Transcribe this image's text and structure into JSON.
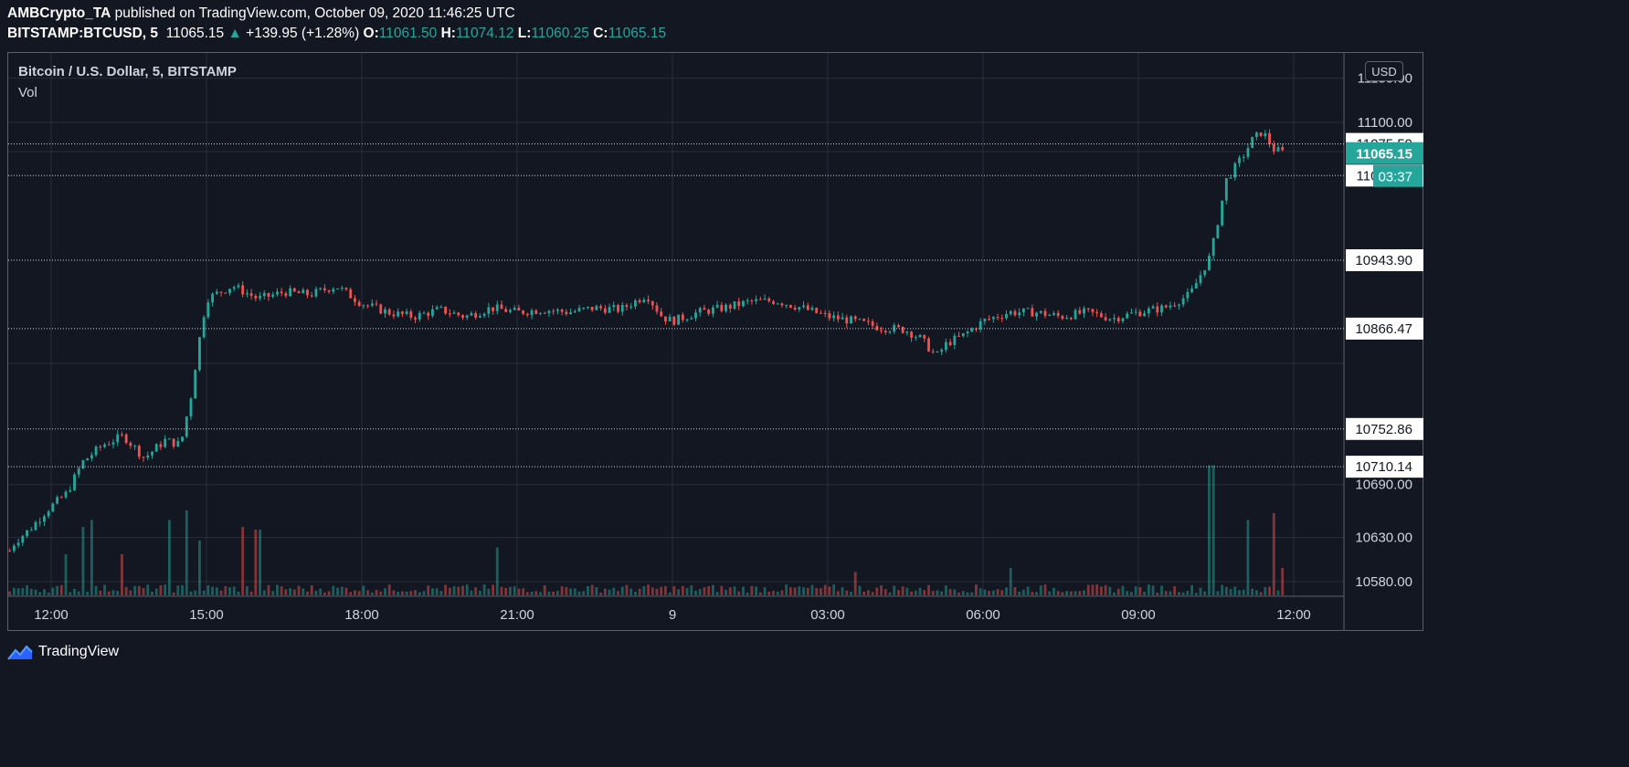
{
  "header": {
    "author": "AMBCrypto_TA",
    "published_text": " published on TradingView.com, October 09, 2020 11:46:25 UTC",
    "symbol": "BITSTAMP:BTCUSD, 5",
    "last": "11065.15",
    "arrow": "▲",
    "change": "+139.95 (+1.28%)",
    "o_label": "O:",
    "o_value": "11061.50",
    "h_label": "H:",
    "h_value": "11074.12",
    "l_label": "L:",
    "l_value": "11060.25",
    "c_label": "C:",
    "c_value": "11065.15"
  },
  "legend": {
    "title": "Bitcoin / U.S. Dollar, 5, BITSTAMP",
    "vol": "Vol"
  },
  "currency_button": "USD",
  "footer": {
    "brand": "TradingView"
  },
  "colors": {
    "background": "#131722",
    "up": "#26a69a",
    "down": "#ef5350",
    "grid": "#2a2e39",
    "text": "#d1d4dc"
  },
  "chart_data": {
    "type": "candlestick",
    "title": "Bitcoin / U.S. Dollar, 5, BITSTAMP",
    "ylim": [
      10555,
      11160
    ],
    "y_ticks": [
      11150.0,
      11100.0,
      10690.0,
      10630.0,
      10580.0
    ],
    "y_tick_labels": [
      "11150.00",
      "11100.00",
      "10690.00",
      "10630.00",
      "10580.00"
    ],
    "price_lines": [
      {
        "value": 11075.59,
        "label": "11075.59"
      },
      {
        "value": 11039.73,
        "label": "11039.73"
      },
      {
        "value": 10943.9,
        "label": "10943.90"
      },
      {
        "value": 10866.47,
        "label": "10866.47"
      },
      {
        "value": 10752.86,
        "label": "10752.86"
      },
      {
        "value": 10710.14,
        "label": "10710.14"
      }
    ],
    "last_price": {
      "value": 11065.15,
      "label": "11065.15",
      "countdown": "03:37"
    },
    "x_ticks": [
      "12:00",
      "15:00",
      "18:00",
      "21:00",
      "9",
      "03:00",
      "06:00",
      "09:00",
      "12:00"
    ],
    "grid": true,
    "price_path": [
      [
        11.2,
        10615
      ],
      [
        11.3,
        10625
      ],
      [
        11.6,
        10640
      ],
      [
        11.9,
        10660
      ],
      [
        12.3,
        10680
      ],
      [
        12.6,
        10715
      ],
      [
        13.0,
        10735
      ],
      [
        13.4,
        10745
      ],
      [
        13.8,
        10720
      ],
      [
        14.2,
        10740
      ],
      [
        14.5,
        10735
      ],
      [
        14.7,
        10790
      ],
      [
        14.85,
        10850
      ],
      [
        15.0,
        10900
      ],
      [
        15.5,
        10915
      ],
      [
        16.0,
        10900
      ],
      [
        16.5,
        10908
      ],
      [
        17.0,
        10905
      ],
      [
        17.5,
        10915
      ],
      [
        18.0,
        10895
      ],
      [
        18.5,
        10885
      ],
      [
        19.0,
        10880
      ],
      [
        19.5,
        10888
      ],
      [
        20.0,
        10880
      ],
      [
        20.5,
        10890
      ],
      [
        21.0,
        10885
      ],
      [
        21.5,
        10888
      ],
      [
        22.0,
        10885
      ],
      [
        22.5,
        10890
      ],
      [
        23.0,
        10888
      ],
      [
        23.5,
        10905
      ],
      [
        23.8,
        10880
      ],
      [
        24.0,
        10875
      ],
      [
        24.5,
        10885
      ],
      [
        25.0,
        10890
      ],
      [
        25.5,
        10897
      ],
      [
        26.0,
        10898
      ],
      [
        26.5,
        10890
      ],
      [
        27.0,
        10880
      ],
      [
        27.5,
        10875
      ],
      [
        28.0,
        10868
      ],
      [
        28.5,
        10865
      ],
      [
        28.8,
        10855
      ],
      [
        29.1,
        10835
      ],
      [
        29.3,
        10850
      ],
      [
        29.6,
        10858
      ],
      [
        30.0,
        10875
      ],
      [
        30.5,
        10885
      ],
      [
        31.0,
        10885
      ],
      [
        31.5,
        10880
      ],
      [
        32.0,
        10885
      ],
      [
        32.5,
        10878
      ],
      [
        33.0,
        10885
      ],
      [
        33.5,
        10890
      ],
      [
        34.0,
        10905
      ],
      [
        34.4,
        10950
      ],
      [
        34.7,
        11035
      ],
      [
        35.0,
        11060
      ],
      [
        35.2,
        11080
      ],
      [
        35.4,
        11090
      ],
      [
        35.6,
        11070
      ],
      [
        35.83,
        11065
      ]
    ],
    "volume_spikes": [
      [
        12.3,
        0.3
      ],
      [
        12.6,
        0.5
      ],
      [
        12.8,
        0.55
      ],
      [
        13.4,
        0.3
      ],
      [
        14.3,
        0.55
      ],
      [
        14.6,
        0.62
      ],
      [
        14.9,
        0.4
      ],
      [
        15.7,
        0.5
      ],
      [
        16.0,
        0.48
      ],
      [
        20.6,
        0.35
      ],
      [
        27.5,
        0.17
      ],
      [
        30.5,
        0.2
      ],
      [
        34.4,
        0.95
      ],
      [
        35.1,
        0.55
      ],
      [
        35.6,
        0.6
      ],
      [
        35.8,
        0.2
      ]
    ]
  }
}
